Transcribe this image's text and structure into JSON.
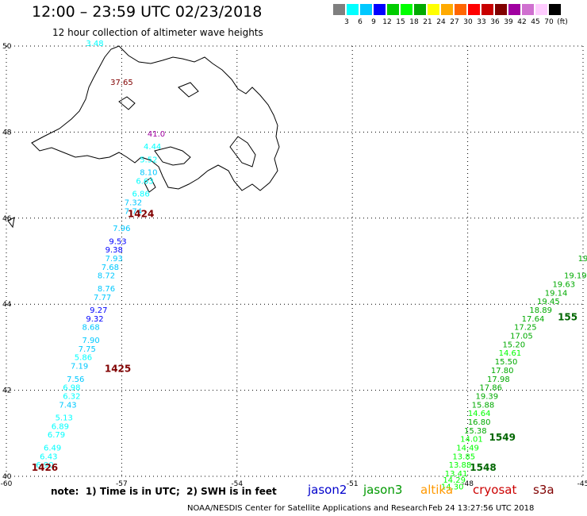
{
  "title": "12:00 – 23:59 UTC 02/23/2018",
  "subtitle": "12 hour collection of altimeter wave heights",
  "legend": {
    "colors": [
      "#7f7f7f",
      "#00ffff",
      "#00c8ff",
      "#0000ff",
      "#00cc00",
      "#00ff00",
      "#00aa00",
      "#ffff00",
      "#ffaa00",
      "#ff6600",
      "#ff0000",
      "#c80000",
      "#800000",
      "#a000a0",
      "#d070d0",
      "#ffccff",
      "#000000"
    ],
    "labels": [
      "3",
      "6",
      "9",
      "12",
      "15",
      "18",
      "21",
      "24",
      "27",
      "30",
      "33",
      "36",
      "39",
      "42",
      "45",
      "70",
      "(ft)"
    ]
  },
  "axes": {
    "lon_ticks": [
      "-60",
      "-57",
      "-54",
      "-51",
      "-48",
      "-45"
    ],
    "lat_ticks": [
      "50",
      "48",
      "46",
      "44",
      "42",
      "40"
    ]
  },
  "chart_data": {
    "type": "scatter",
    "x_range": [
      -60,
      -45
    ],
    "y_range": [
      40,
      50
    ],
    "track_labels": [
      {
        "text": "1424",
        "lon": -56.5,
        "lat": 46.1
      },
      {
        "text": "1425",
        "lon": -57.1,
        "lat": 42.5
      },
      {
        "text": "1426",
        "lon": -59.0,
        "lat": 40.2
      },
      {
        "text": "1548",
        "lon": -47.6,
        "lat": 40.2
      },
      {
        "text": "1549",
        "lon": -47.1,
        "lat": 40.9
      },
      {
        "text": "155",
        "lon": -45.4,
        "lat": 43.7
      }
    ],
    "points": [
      {
        "v": "3.48",
        "lon": -57.7,
        "lat": 50.0,
        "c": "#00ffff"
      },
      {
        "v": "37.65",
        "lon": -57.0,
        "lat": 49.1,
        "c": "#800000"
      },
      {
        "v": "41.0",
        "lon": -56.1,
        "lat": 47.9,
        "c": "#a000a0"
      },
      {
        "v": "4.44",
        "lon": -56.2,
        "lat": 47.6,
        "c": "#00ffff"
      },
      {
        "v": "5.52",
        "lon": -56.3,
        "lat": 47.3,
        "c": "#00ffff"
      },
      {
        "v": "8.10",
        "lon": -56.3,
        "lat": 47.0,
        "c": "#00c8ff"
      },
      {
        "v": "6.63",
        "lon": -56.4,
        "lat": 46.8,
        "c": "#00ffff"
      },
      {
        "v": "6.86",
        "lon": -56.5,
        "lat": 46.5,
        "c": "#00ffff"
      },
      {
        "v": "7.32",
        "lon": -56.7,
        "lat": 46.3,
        "c": "#00c8ff"
      },
      {
        "v": "7.74",
        "lon": -56.7,
        "lat": 46.1,
        "c": "#00c8ff"
      },
      {
        "v": "7.96",
        "lon": -57.0,
        "lat": 45.7,
        "c": "#00c8ff"
      },
      {
        "v": "9.53",
        "lon": -57.1,
        "lat": 45.4,
        "c": "#0000ff"
      },
      {
        "v": "9.38",
        "lon": -57.2,
        "lat": 45.2,
        "c": "#0000ff"
      },
      {
        "v": "7.93",
        "lon": -57.2,
        "lat": 45.0,
        "c": "#00c8ff"
      },
      {
        "v": "7.68",
        "lon": -57.3,
        "lat": 44.8,
        "c": "#00c8ff"
      },
      {
        "v": "8.72",
        "lon": -57.4,
        "lat": 44.6,
        "c": "#00c8ff"
      },
      {
        "v": "8.76",
        "lon": -57.4,
        "lat": 44.3,
        "c": "#00c8ff"
      },
      {
        "v": "7.77",
        "lon": -57.5,
        "lat": 44.1,
        "c": "#00c8ff"
      },
      {
        "v": "9.27",
        "lon": -57.6,
        "lat": 43.8,
        "c": "#0000ff"
      },
      {
        "v": "9.32",
        "lon": -57.7,
        "lat": 43.6,
        "c": "#0000ff"
      },
      {
        "v": "8.68",
        "lon": -57.8,
        "lat": 43.4,
        "c": "#00c8ff"
      },
      {
        "v": "7.90",
        "lon": -57.8,
        "lat": 43.1,
        "c": "#00c8ff"
      },
      {
        "v": "7.75",
        "lon": -57.9,
        "lat": 42.9,
        "c": "#00c8ff"
      },
      {
        "v": "5.86",
        "lon": -58.0,
        "lat": 42.7,
        "c": "#00ffff"
      },
      {
        "v": "7.19",
        "lon": -58.1,
        "lat": 42.5,
        "c": "#00c8ff"
      },
      {
        "v": "7.56",
        "lon": -58.2,
        "lat": 42.2,
        "c": "#00c8ff"
      },
      {
        "v": "6.98",
        "lon": -58.3,
        "lat": 42.0,
        "c": "#00ffff"
      },
      {
        "v": "6.32",
        "lon": -58.3,
        "lat": 41.8,
        "c": "#00ffff"
      },
      {
        "v": "7.43",
        "lon": -58.4,
        "lat": 41.6,
        "c": "#00c8ff"
      },
      {
        "v": "5.13",
        "lon": -58.5,
        "lat": 41.3,
        "c": "#00ffff"
      },
      {
        "v": "6.89",
        "lon": -58.6,
        "lat": 41.1,
        "c": "#00ffff"
      },
      {
        "v": "6.79",
        "lon": -58.7,
        "lat": 40.9,
        "c": "#00ffff"
      },
      {
        "v": "6.49",
        "lon": -58.8,
        "lat": 40.6,
        "c": "#00ffff"
      },
      {
        "v": "6.43",
        "lon": -58.9,
        "lat": 40.4,
        "c": "#00ffff"
      },
      {
        "v": "6.90",
        "lon": -59.0,
        "lat": 40.2,
        "c": "#00ffff"
      },
      {
        "v": "19",
        "lon": -45.0,
        "lat": 45.0,
        "c": "#00aa00"
      },
      {
        "v": "19.19",
        "lon": -45.2,
        "lat": 44.6,
        "c": "#00aa00"
      },
      {
        "v": "19.63",
        "lon": -45.5,
        "lat": 44.4,
        "c": "#00aa00"
      },
      {
        "v": "19.14",
        "lon": -45.7,
        "lat": 44.2,
        "c": "#00aa00"
      },
      {
        "v": "19.45",
        "lon": -45.9,
        "lat": 44.0,
        "c": "#00aa00"
      },
      {
        "v": "18.89",
        "lon": -46.1,
        "lat": 43.8,
        "c": "#00aa00"
      },
      {
        "v": "17.64",
        "lon": -46.3,
        "lat": 43.6,
        "c": "#00aa00"
      },
      {
        "v": "17.25",
        "lon": -46.5,
        "lat": 43.4,
        "c": "#00aa00"
      },
      {
        "v": "17.05",
        "lon": -46.6,
        "lat": 43.2,
        "c": "#00aa00"
      },
      {
        "v": "15.20",
        "lon": -46.8,
        "lat": 43.0,
        "c": "#00aa00"
      },
      {
        "v": "14.61",
        "lon": -46.9,
        "lat": 42.8,
        "c": "#00ff00"
      },
      {
        "v": "15.50",
        "lon": -47.0,
        "lat": 42.6,
        "c": "#00aa00"
      },
      {
        "v": "17.80",
        "lon": -47.1,
        "lat": 42.4,
        "c": "#00aa00"
      },
      {
        "v": "17.98",
        "lon": -47.2,
        "lat": 42.2,
        "c": "#00aa00"
      },
      {
        "v": "17.86",
        "lon": -47.4,
        "lat": 42.0,
        "c": "#00aa00"
      },
      {
        "v": "19.39",
        "lon": -47.5,
        "lat": 41.8,
        "c": "#00aa00"
      },
      {
        "v": "15.88",
        "lon": -47.6,
        "lat": 41.6,
        "c": "#00aa00"
      },
      {
        "v": "14.64",
        "lon": -47.7,
        "lat": 41.4,
        "c": "#00ff00"
      },
      {
        "v": "16.80",
        "lon": -47.7,
        "lat": 41.2,
        "c": "#00aa00"
      },
      {
        "v": "15.38",
        "lon": -47.8,
        "lat": 41.0,
        "c": "#00aa00"
      },
      {
        "v": "14.01",
        "lon": -47.9,
        "lat": 40.8,
        "c": "#00ff00"
      },
      {
        "v": "14.49",
        "lon": -48.0,
        "lat": 40.6,
        "c": "#00ff00"
      },
      {
        "v": "13.85",
        "lon": -48.1,
        "lat": 40.4,
        "c": "#00ff00"
      },
      {
        "v": "13.88",
        "lon": -48.2,
        "lat": 40.2,
        "c": "#00ff00"
      },
      {
        "v": "13.41",
        "lon": -48.3,
        "lat": 40.0,
        "c": "#00ff00"
      },
      {
        "v": "14.29",
        "lon": -48.35,
        "lat": 39.85,
        "c": "#00ff00"
      },
      {
        "v": "14.30",
        "lon": -48.4,
        "lat": 39.7,
        "c": "#00ff00"
      }
    ]
  },
  "footer": {
    "note": "note:  1) Time is in UTC;  2) SWH is in feet",
    "satellites": [
      {
        "name": "jason2",
        "color": "#0000cc"
      },
      {
        "name": "jason3",
        "color": "#009900"
      },
      {
        "name": "altika",
        "color": "#ff9900"
      },
      {
        "name": "cryosat",
        "color": "#cc0000"
      },
      {
        "name": "s3a",
        "color": "#800000"
      }
    ],
    "credit": "NOAA/NESDIS Center for Satellite Applications and Research",
    "timestamp": "Feb 24 13:27:56 UTC 2018"
  }
}
